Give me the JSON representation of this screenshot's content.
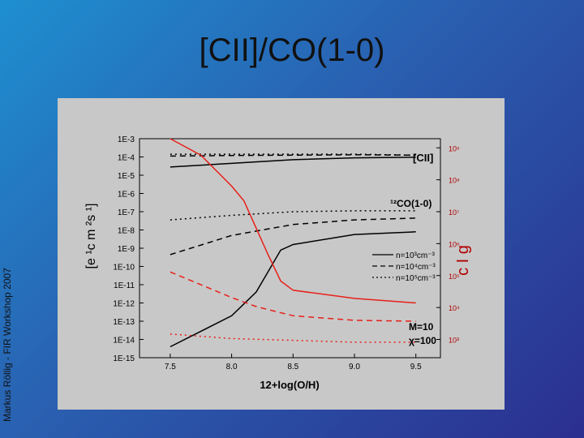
{
  "slide": {
    "title": "[CII]/CO(1-0)",
    "side_label": "Markus Röllig - FIR Workshop 2007"
  },
  "colors": {
    "background_start": "#1e8fd0",
    "background_end": "#2b2f8f",
    "figure_bg": "#c8c8c8",
    "black_series": "#000000",
    "red_series": "#e8201a"
  },
  "chart_data": {
    "type": "line",
    "xlabel": "12+log(O/H)",
    "xlim": [
      7.25,
      9.7
    ],
    "x_ticks": [
      "7.5",
      "8.0",
      "8.5",
      "9.0",
      "9.5"
    ],
    "y_left_scale": "log",
    "y_left_ticks": [
      "1E-3",
      "1E-4",
      "1E-5",
      "1E-6",
      "1E-7",
      "1E-8",
      "1E-9",
      "1E-10",
      "1E-11",
      "1E-12",
      "1E-13",
      "1E-14",
      "1E-15"
    ],
    "y_left_label_fragment": "[e  ¹c  m  ²s  ¹]",
    "y_right_ticks": [
      "10⁵",
      "10⁸",
      "10⁷",
      "10⁶",
      "10⁵",
      "10⁴",
      "10³"
    ],
    "y_right_label_fragment": "c  I  g",
    "grid": false,
    "annotations": [
      "[CII]",
      "¹²CO(1-0)",
      "M=10",
      "χ=100"
    ],
    "legend": {
      "placement": "right-middle",
      "entries": [
        {
          "style": "solid",
          "label": "n=10³cm⁻³"
        },
        {
          "style": "dashed",
          "label": "n=10⁴cm⁻³"
        },
        {
          "style": "dotted",
          "label": "n=10⁵cm⁻³"
        }
      ]
    },
    "series": [
      {
        "group": "[CII]",
        "color": "black",
        "style": "solid",
        "x": [
          7.5,
          8.0,
          8.5,
          9.0,
          9.5
        ],
        "log_y": [
          -4.55,
          -4.35,
          -4.15,
          -4.05,
          -4.02
        ]
      },
      {
        "group": "[CII]",
        "color": "black",
        "style": "dashed",
        "x": [
          7.5,
          8.0,
          8.5,
          9.0,
          9.5
        ],
        "log_y": [
          -3.95,
          -3.92,
          -3.9,
          -3.88,
          -3.9
        ]
      },
      {
        "group": "[CII]",
        "color": "black",
        "style": "dotted",
        "x": [
          7.5,
          8.0,
          8.5,
          9.0,
          9.5
        ],
        "log_y": [
          -3.85,
          -3.85,
          -3.85,
          -3.85,
          -3.9
        ]
      },
      {
        "group": "CO(1-0)",
        "color": "black",
        "style": "solid",
        "x": [
          7.5,
          8.0,
          8.2,
          8.4,
          8.5,
          9.0,
          9.5
        ],
        "log_y": [
          -14.4,
          -12.7,
          -11.4,
          -9.1,
          -8.8,
          -8.25,
          -8.1
        ]
      },
      {
        "group": "CO(1-0)",
        "color": "black",
        "style": "dashed",
        "x": [
          7.5,
          8.0,
          8.5,
          9.0,
          9.5
        ],
        "log_y": [
          -9.35,
          -8.3,
          -7.7,
          -7.45,
          -7.35
        ]
      },
      {
        "group": "CO(1-0)",
        "color": "black",
        "style": "dotted",
        "x": [
          7.5,
          8.0,
          8.5,
          9.0,
          9.5
        ],
        "log_y": [
          -7.45,
          -7.2,
          -7.0,
          -6.95,
          -6.95
        ]
      },
      {
        "group": "ratio",
        "color": "red",
        "style": "solid",
        "x": [
          7.5,
          7.75,
          8.0,
          8.1,
          8.3,
          8.4,
          8.5,
          9.0,
          9.5
        ],
        "log_y": [
          -3.0,
          -3.9,
          -5.6,
          -6.4,
          -9.4,
          -10.8,
          -11.3,
          -11.75,
          -12.0
        ]
      },
      {
        "group": "ratio",
        "color": "red",
        "style": "dashed",
        "x": [
          7.5,
          8.0,
          8.2,
          8.5,
          9.0,
          9.5
        ],
        "log_y": [
          -10.3,
          -11.7,
          -12.2,
          -12.7,
          -12.95,
          -13.0
        ]
      },
      {
        "group": "ratio",
        "color": "red",
        "style": "dotted",
        "x": [
          7.5,
          8.0,
          8.5,
          9.0,
          9.5
        ],
        "log_y": [
          -13.7,
          -13.95,
          -14.05,
          -14.15,
          -14.15
        ]
      }
    ]
  }
}
